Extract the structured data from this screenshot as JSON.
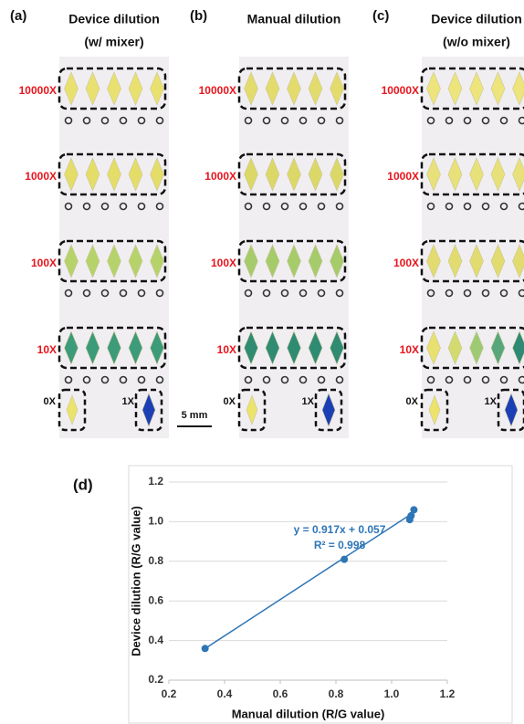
{
  "panels": [
    {
      "label": "(a)",
      "title": [
        "Device dilution",
        "(w/ mixer)"
      ],
      "rows": [
        "10000X",
        "1000X",
        "100X",
        "10X"
      ],
      "zero": "0X",
      "one": "1X"
    },
    {
      "label": "(b)",
      "title": [
        "Manual dilution"
      ],
      "rows": [
        "10000X",
        "1000X",
        "100X",
        "10X"
      ],
      "zero": "0X",
      "one": "1X"
    },
    {
      "label": "(c)",
      "title": [
        "Device dilution",
        "(w/o mixer)"
      ],
      "rows": [
        "10000X",
        "1000X",
        "100X",
        "10X"
      ],
      "zero": "0X",
      "one": "1X"
    }
  ],
  "scale_bar": "5 mm",
  "chart_data": {
    "type": "scatter",
    "panel_label": "(d)",
    "x_label": "Manual dilution (R/G value)",
    "y_label": "Device dilution (R/G value)",
    "x": [
      0.33,
      0.83,
      1.065,
      1.07,
      1.08
    ],
    "values": [
      0.36,
      0.81,
      1.01,
      1.03,
      1.06
    ],
    "color": "#2e75b6",
    "trendline": {
      "slope": 0.917,
      "intercept": 0.057,
      "equation": "y = 0.917x + 0.057",
      "r2_label": "R² = 0.998"
    },
    "xlim": [
      0.2,
      1.2
    ],
    "xticks": [
      0.2,
      0.4,
      0.6,
      0.8,
      {
        "value": 1,
        "label": "1.0"
      },
      1.2
    ],
    "ylim": [
      0.2,
      1.2
    ],
    "yticks": [
      0.2,
      0.4,
      0.6,
      0.8,
      {
        "value": 1,
        "label": "1.0"
      },
      1.2
    ],
    "grid": true
  }
}
